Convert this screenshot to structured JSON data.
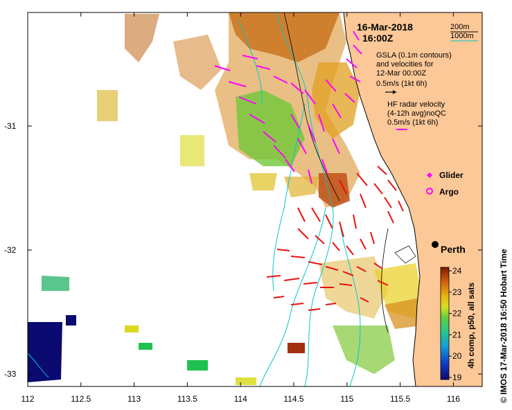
{
  "header": {
    "date": "16-Mar-2018",
    "time": "16:00Z"
  },
  "legend": {
    "contour_200": "200m",
    "contour_1000": "1000m",
    "gsla_line1": "GSLA (0.1m contours)",
    "gsla_line2": "and velocities for",
    "gsla_line3": "12-Mar 00:00Z",
    "gsla_scale": "0.5m/s (1kt 6h)",
    "hf_line1": "HF radar velocity",
    "hf_line2": "(4-12h avg)noQC",
    "hf_scale": "0.5m/s (1kt 6h)",
    "glider": "Glider",
    "argo": "Argo"
  },
  "place": {
    "perth": "Perth"
  },
  "axes": {
    "x_ticks": [
      "112",
      "112.5",
      "113",
      "113.5",
      "114",
      "114.5",
      "115",
      "115.5",
      "116"
    ],
    "y_ticks": [
      "-31",
      "-32",
      "-33"
    ]
  },
  "colorbar": {
    "ticks": [
      "24",
      "23",
      "22",
      "21",
      "20",
      "19"
    ],
    "label": "4h comp, p50, all sats"
  },
  "footer": {
    "credit": "©  IMOS 17-Mar-2018 16:50 Hobart Time"
  },
  "colors": {
    "land": "#fcc898",
    "gsla_arrow": "#ff00ff",
    "hf_arrow": "#e81010",
    "contour_200": "#000000",
    "contour_1000": "#00c8c8"
  }
}
